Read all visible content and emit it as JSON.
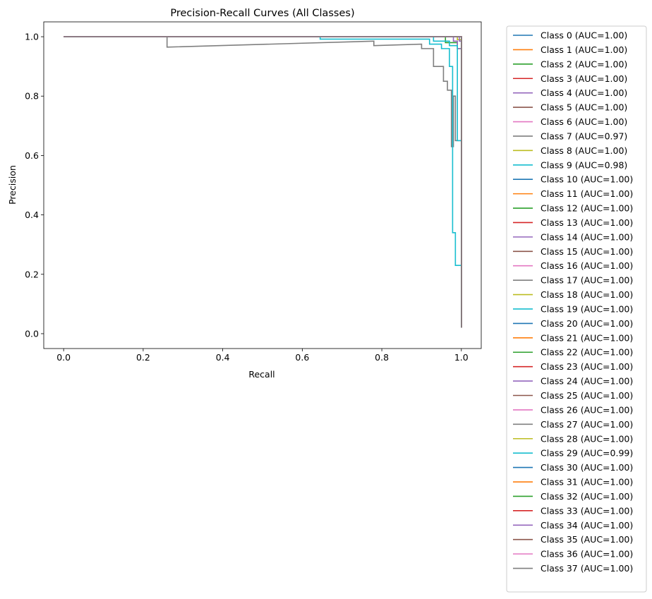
{
  "chart_data": {
    "type": "line",
    "title": "Precision-Recall Curves (All Classes)",
    "xlabel": "Recall",
    "ylabel": "Precision",
    "xlim": [
      -0.05,
      1.05
    ],
    "ylim": [
      -0.05,
      1.05
    ],
    "xticks": [
      "0.0",
      "0.2",
      "0.4",
      "0.6",
      "0.8",
      "1.0"
    ],
    "yticks": [
      "0.0",
      "0.2",
      "0.4",
      "0.6",
      "0.8",
      "1.0"
    ],
    "grid": false,
    "legend_position": "outside-right",
    "colors": [
      "#1f77b4",
      "#ff7f0e",
      "#2ca02c",
      "#d62728",
      "#9467bd",
      "#8c564b",
      "#e377c2",
      "#7f7f7f",
      "#bcbd22",
      "#17becf"
    ],
    "series": [
      {
        "name": "Class 0 (AUC=1.00)",
        "x": [
          0,
          1.0,
          1.0
        ],
        "y": [
          1.0,
          1.0,
          0.02
        ]
      },
      {
        "name": "Class 1 (AUC=1.00)",
        "x": [
          0,
          1.0,
          1.0
        ],
        "y": [
          1.0,
          1.0,
          0.02
        ]
      },
      {
        "name": "Class 2 (AUC=1.00)",
        "x": [
          0,
          0.96,
          0.96,
          0.99,
          0.99,
          1.0,
          1.0
        ],
        "y": [
          1.0,
          1.0,
          0.98,
          0.98,
          0.96,
          0.96,
          0.02
        ]
      },
      {
        "name": "Class 3 (AUC=1.00)",
        "x": [
          0,
          1.0,
          1.0
        ],
        "y": [
          1.0,
          1.0,
          0.02
        ]
      },
      {
        "name": "Class 4 (AUC=1.00)",
        "x": [
          0,
          0.98,
          0.98,
          0.99,
          0.99,
          1.0,
          1.0
        ],
        "y": [
          1.0,
          1.0,
          0.985,
          0.985,
          0.96,
          0.96,
          0.02
        ]
      },
      {
        "name": "Class 5 (AUC=1.00)",
        "x": [
          0,
          1.0,
          1.0
        ],
        "y": [
          1.0,
          1.0,
          0.02
        ]
      },
      {
        "name": "Class 6 (AUC=1.00)",
        "x": [
          0,
          1.0,
          1.0
        ],
        "y": [
          1.0,
          1.0,
          0.02
        ]
      },
      {
        "name": "Class 7 (AUC=0.97)",
        "x": [
          0,
          0.26,
          0.26,
          0.78,
          0.78,
          0.9,
          0.9,
          0.93,
          0.93,
          0.955,
          0.955,
          0.965,
          0.965,
          0.975,
          0.975,
          0.98,
          0.98,
          0.985,
          0.985,
          1.0,
          1.0
        ],
        "y": [
          1.0,
          1.0,
          0.965,
          0.985,
          0.97,
          0.975,
          0.96,
          0.96,
          0.9,
          0.9,
          0.85,
          0.85,
          0.82,
          0.82,
          0.63,
          0.63,
          0.8,
          0.8,
          0.65,
          0.65,
          0.02
        ]
      },
      {
        "name": "Class 8 (AUC=1.00)",
        "x": [
          0,
          0.99,
          0.99,
          1.0,
          1.0
        ],
        "y": [
          1.0,
          1.0,
          0.99,
          0.99,
          0.02
        ]
      },
      {
        "name": "Class 9 (AUC=0.98)",
        "x": [
          0,
          0.645,
          0.645,
          0.92,
          0.92,
          0.95,
          0.95,
          0.97,
          0.97,
          0.978,
          0.978,
          0.985,
          0.985,
          1.0,
          1.0
        ],
        "y": [
          1.0,
          1.0,
          0.992,
          0.992,
          0.975,
          0.975,
          0.96,
          0.96,
          0.9,
          0.9,
          0.34,
          0.34,
          0.23,
          0.23,
          0.02
        ]
      },
      {
        "name": "Class 10 (AUC=1.00)",
        "x": [
          0,
          1.0,
          1.0
        ],
        "y": [
          1.0,
          1.0,
          0.02
        ]
      },
      {
        "name": "Class 11 (AUC=1.00)",
        "x": [
          0,
          1.0,
          1.0
        ],
        "y": [
          1.0,
          1.0,
          0.02
        ]
      },
      {
        "name": "Class 12 (AUC=1.00)",
        "x": [
          0,
          1.0,
          1.0
        ],
        "y": [
          1.0,
          1.0,
          0.02
        ]
      },
      {
        "name": "Class 13 (AUC=1.00)",
        "x": [
          0,
          1.0,
          1.0
        ],
        "y": [
          1.0,
          1.0,
          0.02
        ]
      },
      {
        "name": "Class 14 (AUC=1.00)",
        "x": [
          0,
          1.0,
          1.0
        ],
        "y": [
          1.0,
          1.0,
          0.02
        ]
      },
      {
        "name": "Class 15 (AUC=1.00)",
        "x": [
          0,
          1.0,
          1.0
        ],
        "y": [
          1.0,
          1.0,
          0.02
        ]
      },
      {
        "name": "Class 16 (AUC=1.00)",
        "x": [
          0,
          1.0,
          1.0
        ],
        "y": [
          1.0,
          1.0,
          0.02
        ]
      },
      {
        "name": "Class 17 (AUC=1.00)",
        "x": [
          0,
          1.0,
          1.0
        ],
        "y": [
          1.0,
          1.0,
          0.02
        ]
      },
      {
        "name": "Class 18 (AUC=1.00)",
        "x": [
          0,
          1.0,
          1.0
        ],
        "y": [
          1.0,
          1.0,
          0.02
        ]
      },
      {
        "name": "Class 19 (AUC=1.00)",
        "x": [
          0,
          1.0,
          1.0
        ],
        "y": [
          1.0,
          1.0,
          0.02
        ]
      },
      {
        "name": "Class 20 (AUC=1.00)",
        "x": [
          0,
          1.0,
          1.0
        ],
        "y": [
          1.0,
          1.0,
          0.02
        ]
      },
      {
        "name": "Class 21 (AUC=1.00)",
        "x": [
          0,
          1.0,
          1.0
        ],
        "y": [
          1.0,
          1.0,
          0.02
        ]
      },
      {
        "name": "Class 22 (AUC=1.00)",
        "x": [
          0,
          1.0,
          1.0
        ],
        "y": [
          1.0,
          1.0,
          0.02
        ]
      },
      {
        "name": "Class 23 (AUC=1.00)",
        "x": [
          0,
          1.0,
          1.0
        ],
        "y": [
          1.0,
          1.0,
          0.02
        ]
      },
      {
        "name": "Class 24 (AUC=1.00)",
        "x": [
          0,
          0.995,
          0.995,
          1.0,
          1.0
        ],
        "y": [
          1.0,
          1.0,
          0.985,
          0.985,
          0.02
        ]
      },
      {
        "name": "Class 25 (AUC=1.00)",
        "x": [
          0,
          1.0,
          1.0
        ],
        "y": [
          1.0,
          1.0,
          0.02
        ]
      },
      {
        "name": "Class 26 (AUC=1.00)",
        "x": [
          0,
          1.0,
          1.0
        ],
        "y": [
          1.0,
          1.0,
          0.02
        ]
      },
      {
        "name": "Class 27 (AUC=1.00)",
        "x": [
          0,
          1.0,
          1.0
        ],
        "y": [
          1.0,
          1.0,
          0.02
        ]
      },
      {
        "name": "Class 28 (AUC=1.00)",
        "x": [
          0,
          1.0,
          1.0
        ],
        "y": [
          1.0,
          1.0,
          0.02
        ]
      },
      {
        "name": "Class 29 (AUC=0.99)",
        "x": [
          0,
          0.93,
          0.93,
          0.97,
          0.97,
          0.99,
          0.99,
          1.0,
          1.0
        ],
        "y": [
          1.0,
          1.0,
          0.985,
          0.985,
          0.97,
          0.97,
          0.65,
          0.65,
          0.02
        ]
      },
      {
        "name": "Class 30 (AUC=1.00)",
        "x": [
          0,
          1.0,
          1.0
        ],
        "y": [
          1.0,
          1.0,
          0.02
        ]
      },
      {
        "name": "Class 31 (AUC=1.00)",
        "x": [
          0,
          1.0,
          1.0
        ],
        "y": [
          1.0,
          1.0,
          0.02
        ]
      },
      {
        "name": "Class 32 (AUC=1.00)",
        "x": [
          0,
          1.0,
          1.0
        ],
        "y": [
          1.0,
          1.0,
          0.02
        ]
      },
      {
        "name": "Class 33 (AUC=1.00)",
        "x": [
          0,
          1.0,
          1.0
        ],
        "y": [
          1.0,
          1.0,
          0.02
        ]
      },
      {
        "name": "Class 34 (AUC=1.00)",
        "x": [
          0,
          1.0,
          1.0
        ],
        "y": [
          1.0,
          1.0,
          0.02
        ]
      },
      {
        "name": "Class 35 (AUC=1.00)",
        "x": [
          0,
          1.0,
          1.0
        ],
        "y": [
          1.0,
          1.0,
          0.02
        ]
      },
      {
        "name": "Class 36 (AUC=1.00)",
        "x": [
          0,
          1.0,
          1.0
        ],
        "y": [
          1.0,
          1.0,
          0.02
        ]
      },
      {
        "name": "Class 37 (AUC=1.00)",
        "x": [
          0,
          1.0,
          1.0
        ],
        "y": [
          1.0,
          1.0,
          0.02
        ]
      }
    ]
  }
}
